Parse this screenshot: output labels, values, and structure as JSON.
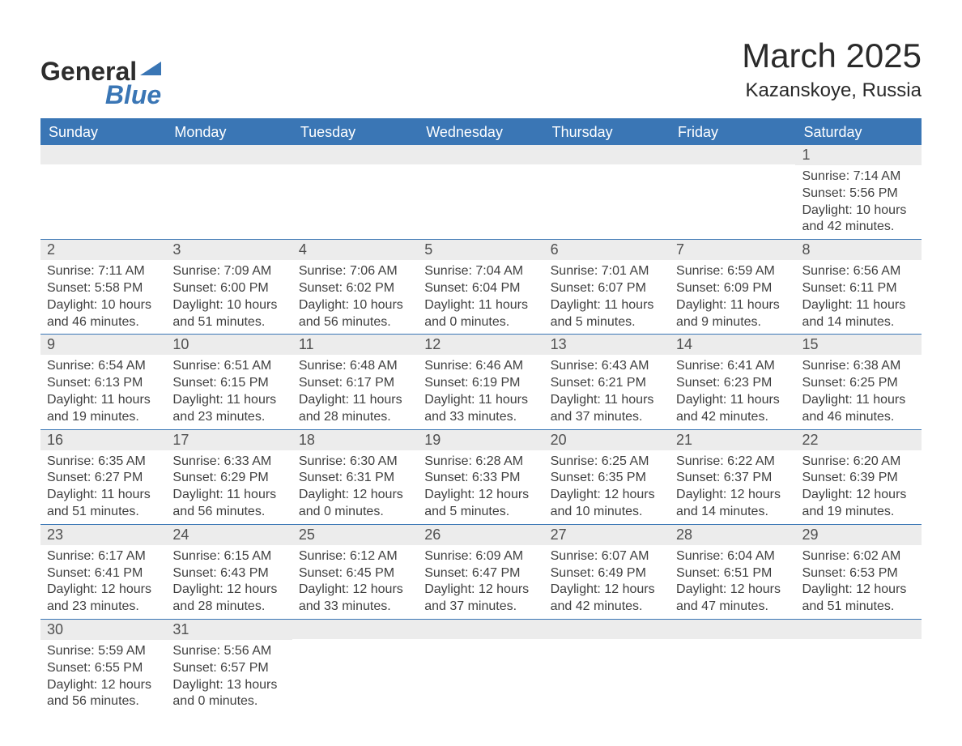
{
  "brand": {
    "name_part1": "General",
    "name_part2": "Blue",
    "color_primary": "#3a76b5",
    "color_text": "#2d2d2d"
  },
  "title": "March 2025",
  "location": "Kazanskoye, Russia",
  "theme": {
    "header_bg": "#3a76b5",
    "header_text": "#ffffff",
    "band_bg": "#ececec",
    "body_text": "#404040",
    "page_bg": "#ffffff",
    "title_fontsize": 42,
    "location_fontsize": 24,
    "header_fontsize": 18,
    "daynum_fontsize": 18,
    "content_fontsize": 16
  },
  "weekdays": [
    "Sunday",
    "Monday",
    "Tuesday",
    "Wednesday",
    "Thursday",
    "Friday",
    "Saturday"
  ],
  "weeks": [
    [
      {
        "day": "",
        "lines": [
          "",
          "",
          "",
          ""
        ]
      },
      {
        "day": "",
        "lines": [
          "",
          "",
          "",
          ""
        ]
      },
      {
        "day": "",
        "lines": [
          "",
          "",
          "",
          ""
        ]
      },
      {
        "day": "",
        "lines": [
          "",
          "",
          "",
          ""
        ]
      },
      {
        "day": "",
        "lines": [
          "",
          "",
          "",
          ""
        ]
      },
      {
        "day": "",
        "lines": [
          "",
          "",
          "",
          ""
        ]
      },
      {
        "day": "1",
        "lines": [
          "Sunrise: 7:14 AM",
          "Sunset: 5:56 PM",
          "Daylight: 10 hours",
          "and 42 minutes."
        ]
      }
    ],
    [
      {
        "day": "2",
        "lines": [
          "Sunrise: 7:11 AM",
          "Sunset: 5:58 PM",
          "Daylight: 10 hours",
          "and 46 minutes."
        ]
      },
      {
        "day": "3",
        "lines": [
          "Sunrise: 7:09 AM",
          "Sunset: 6:00 PM",
          "Daylight: 10 hours",
          "and 51 minutes."
        ]
      },
      {
        "day": "4",
        "lines": [
          "Sunrise: 7:06 AM",
          "Sunset: 6:02 PM",
          "Daylight: 10 hours",
          "and 56 minutes."
        ]
      },
      {
        "day": "5",
        "lines": [
          "Sunrise: 7:04 AM",
          "Sunset: 6:04 PM",
          "Daylight: 11 hours",
          "and 0 minutes."
        ]
      },
      {
        "day": "6",
        "lines": [
          "Sunrise: 7:01 AM",
          "Sunset: 6:07 PM",
          "Daylight: 11 hours",
          "and 5 minutes."
        ]
      },
      {
        "day": "7",
        "lines": [
          "Sunrise: 6:59 AM",
          "Sunset: 6:09 PM",
          "Daylight: 11 hours",
          "and 9 minutes."
        ]
      },
      {
        "day": "8",
        "lines": [
          "Sunrise: 6:56 AM",
          "Sunset: 6:11 PM",
          "Daylight: 11 hours",
          "and 14 minutes."
        ]
      }
    ],
    [
      {
        "day": "9",
        "lines": [
          "Sunrise: 6:54 AM",
          "Sunset: 6:13 PM",
          "Daylight: 11 hours",
          "and 19 minutes."
        ]
      },
      {
        "day": "10",
        "lines": [
          "Sunrise: 6:51 AM",
          "Sunset: 6:15 PM",
          "Daylight: 11 hours",
          "and 23 minutes."
        ]
      },
      {
        "day": "11",
        "lines": [
          "Sunrise: 6:48 AM",
          "Sunset: 6:17 PM",
          "Daylight: 11 hours",
          "and 28 minutes."
        ]
      },
      {
        "day": "12",
        "lines": [
          "Sunrise: 6:46 AM",
          "Sunset: 6:19 PM",
          "Daylight: 11 hours",
          "and 33 minutes."
        ]
      },
      {
        "day": "13",
        "lines": [
          "Sunrise: 6:43 AM",
          "Sunset: 6:21 PM",
          "Daylight: 11 hours",
          "and 37 minutes."
        ]
      },
      {
        "day": "14",
        "lines": [
          "Sunrise: 6:41 AM",
          "Sunset: 6:23 PM",
          "Daylight: 11 hours",
          "and 42 minutes."
        ]
      },
      {
        "day": "15",
        "lines": [
          "Sunrise: 6:38 AM",
          "Sunset: 6:25 PM",
          "Daylight: 11 hours",
          "and 46 minutes."
        ]
      }
    ],
    [
      {
        "day": "16",
        "lines": [
          "Sunrise: 6:35 AM",
          "Sunset: 6:27 PM",
          "Daylight: 11 hours",
          "and 51 minutes."
        ]
      },
      {
        "day": "17",
        "lines": [
          "Sunrise: 6:33 AM",
          "Sunset: 6:29 PM",
          "Daylight: 11 hours",
          "and 56 minutes."
        ]
      },
      {
        "day": "18",
        "lines": [
          "Sunrise: 6:30 AM",
          "Sunset: 6:31 PM",
          "Daylight: 12 hours",
          "and 0 minutes."
        ]
      },
      {
        "day": "19",
        "lines": [
          "Sunrise: 6:28 AM",
          "Sunset: 6:33 PM",
          "Daylight: 12 hours",
          "and 5 minutes."
        ]
      },
      {
        "day": "20",
        "lines": [
          "Sunrise: 6:25 AM",
          "Sunset: 6:35 PM",
          "Daylight: 12 hours",
          "and 10 minutes."
        ]
      },
      {
        "day": "21",
        "lines": [
          "Sunrise: 6:22 AM",
          "Sunset: 6:37 PM",
          "Daylight: 12 hours",
          "and 14 minutes."
        ]
      },
      {
        "day": "22",
        "lines": [
          "Sunrise: 6:20 AM",
          "Sunset: 6:39 PM",
          "Daylight: 12 hours",
          "and 19 minutes."
        ]
      }
    ],
    [
      {
        "day": "23",
        "lines": [
          "Sunrise: 6:17 AM",
          "Sunset: 6:41 PM",
          "Daylight: 12 hours",
          "and 23 minutes."
        ]
      },
      {
        "day": "24",
        "lines": [
          "Sunrise: 6:15 AM",
          "Sunset: 6:43 PM",
          "Daylight: 12 hours",
          "and 28 minutes."
        ]
      },
      {
        "day": "25",
        "lines": [
          "Sunrise: 6:12 AM",
          "Sunset: 6:45 PM",
          "Daylight: 12 hours",
          "and 33 minutes."
        ]
      },
      {
        "day": "26",
        "lines": [
          "Sunrise: 6:09 AM",
          "Sunset: 6:47 PM",
          "Daylight: 12 hours",
          "and 37 minutes."
        ]
      },
      {
        "day": "27",
        "lines": [
          "Sunrise: 6:07 AM",
          "Sunset: 6:49 PM",
          "Daylight: 12 hours",
          "and 42 minutes."
        ]
      },
      {
        "day": "28",
        "lines": [
          "Sunrise: 6:04 AM",
          "Sunset: 6:51 PM",
          "Daylight: 12 hours",
          "and 47 minutes."
        ]
      },
      {
        "day": "29",
        "lines": [
          "Sunrise: 6:02 AM",
          "Sunset: 6:53 PM",
          "Daylight: 12 hours",
          "and 51 minutes."
        ]
      }
    ],
    [
      {
        "day": "30",
        "lines": [
          "Sunrise: 5:59 AM",
          "Sunset: 6:55 PM",
          "Daylight: 12 hours",
          "and 56 minutes."
        ]
      },
      {
        "day": "31",
        "lines": [
          "Sunrise: 5:56 AM",
          "Sunset: 6:57 PM",
          "Daylight: 13 hours",
          "and 0 minutes."
        ]
      },
      {
        "day": "",
        "lines": [
          "",
          "",
          "",
          ""
        ]
      },
      {
        "day": "",
        "lines": [
          "",
          "",
          "",
          ""
        ]
      },
      {
        "day": "",
        "lines": [
          "",
          "",
          "",
          ""
        ]
      },
      {
        "day": "",
        "lines": [
          "",
          "",
          "",
          ""
        ]
      },
      {
        "day": "",
        "lines": [
          "",
          "",
          "",
          ""
        ]
      }
    ]
  ]
}
